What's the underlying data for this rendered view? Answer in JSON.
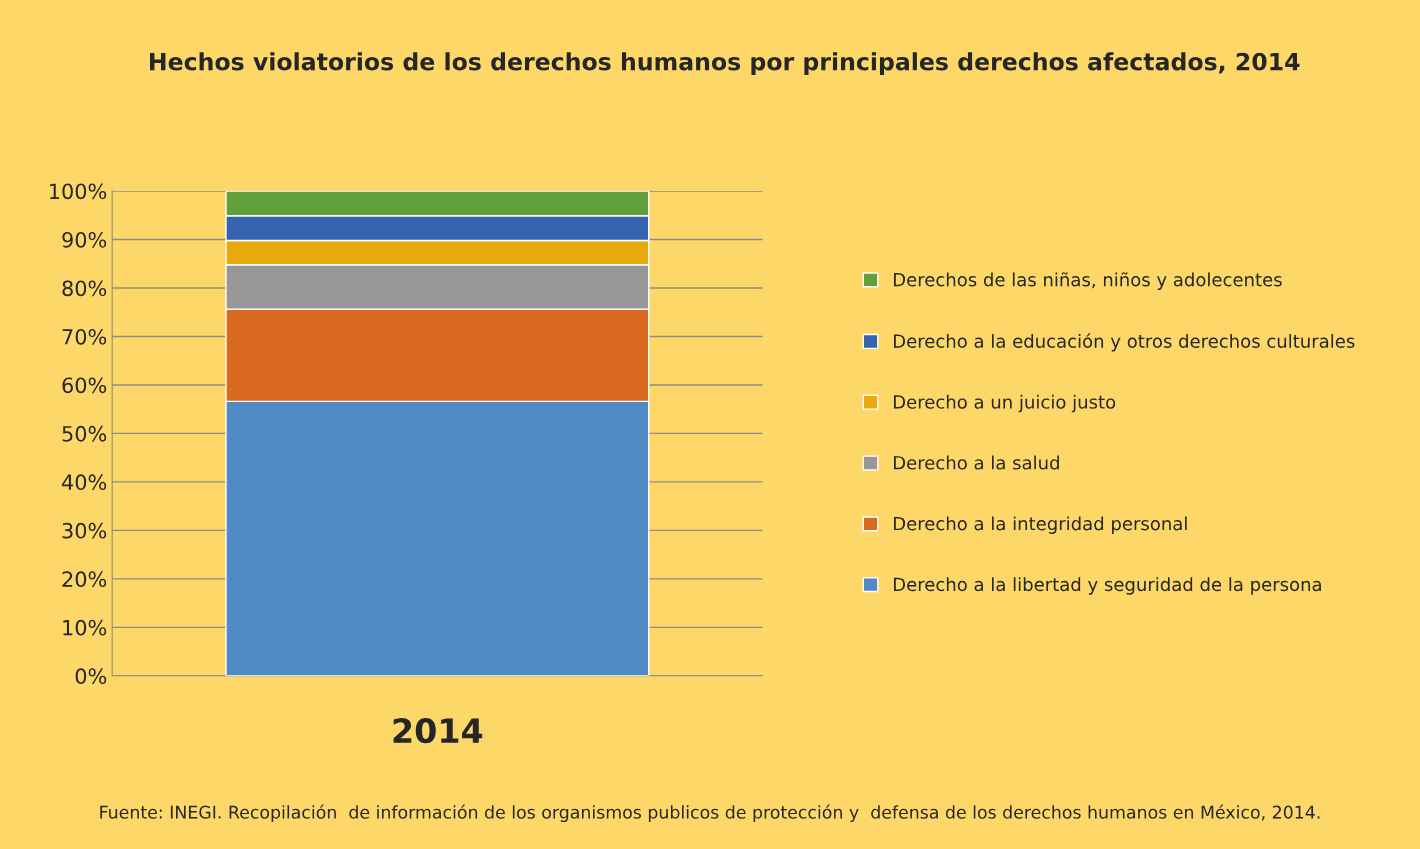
{
  "chart_data": {
    "type": "bar",
    "title": "Hechos violatorios de los derechos humanos por principales derechos afectados, 2014",
    "categories": [
      "2014"
    ],
    "stacked": true,
    "series": [
      {
        "name": "Derecho a la libertad y seguridad de la persona",
        "color": "#4f8ac4",
        "values": [
          56.6
        ]
      },
      {
        "name": "Derecho a la integridad personal",
        "color": "#d8691f",
        "values": [
          19.0
        ]
      },
      {
        "name": "Derecho a la salud",
        "color": "#979797",
        "values": [
          9.2
        ]
      },
      {
        "name": "Derecho a un juicio justo",
        "color": "#e8aa0c",
        "values": [
          5.0
        ]
      },
      {
        "name": "Derecho a la educación y otros derechos culturales",
        "color": "#3563b0",
        "values": [
          5.1
        ]
      },
      {
        "name": "Derechos de las niñas, niños y adolecentes",
        "color": "#62a03c",
        "values": [
          5.1
        ]
      }
    ],
    "ylim": [
      0,
      100
    ],
    "yticks": [
      {
        "value": 0,
        "label": "0%"
      },
      {
        "value": 10,
        "label": "10%"
      },
      {
        "value": 20,
        "label": "20%"
      },
      {
        "value": 30,
        "label": "30%"
      },
      {
        "value": 40,
        "label": "40%"
      },
      {
        "value": 50,
        "label": "50%"
      },
      {
        "value": 60,
        "label": "60%"
      },
      {
        "value": 70,
        "label": "70%"
      },
      {
        "value": 80,
        "label": "80%"
      },
      {
        "value": 90,
        "label": "90%"
      },
      {
        "value": 100,
        "label": "100%"
      }
    ],
    "grid": "y",
    "legend": "right",
    "annotations": [
      "Fuente: INEGI. Recopilación  de información de los organismos publicos de protección y  defensa de los derechos humanos en México, 2014."
    ]
  }
}
